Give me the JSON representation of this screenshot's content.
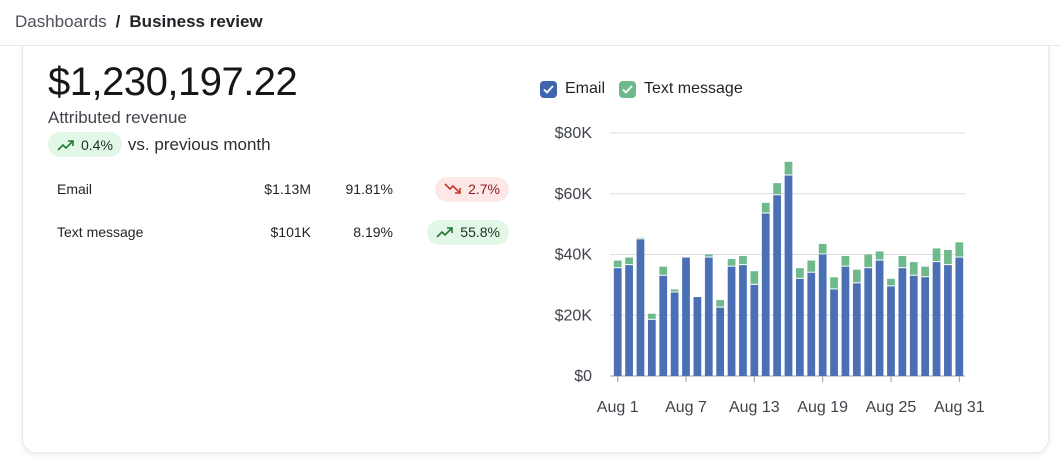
{
  "breadcrumb": {
    "parent": "Dashboards",
    "separator": "/",
    "current": "Business review"
  },
  "summary": {
    "total": "$1,230,197.22",
    "label": "Attributed revenue",
    "change": "0.4%",
    "change_direction": "up",
    "comparison": "vs. previous month"
  },
  "channels": [
    {
      "name": "Email",
      "revenue": "$1.13M",
      "share": "91.81%",
      "change": "2.7%",
      "direction": "down"
    },
    {
      "name": "Text message",
      "revenue": "$101K",
      "share": "8.19%",
      "change": "55.8%",
      "direction": "up"
    }
  ],
  "colors": {
    "email": "#4a6fb5",
    "text": "#6fba8c",
    "up_bg": "#e3f7e7",
    "down_bg": "#fde7e7",
    "up_icon": "#1f7a3a",
    "down_icon": "#c0392b"
  },
  "icons": {
    "up": "trending-up-icon",
    "down": "trending-down-icon",
    "check": "check-icon"
  },
  "chart_data": {
    "type": "bar",
    "stacked": true,
    "legend": [
      {
        "name": "Email",
        "checked": true
      },
      {
        "name": "Text message",
        "checked": true
      }
    ],
    "legend_position": "top-left",
    "grid": true,
    "ylim": [
      0,
      80000
    ],
    "yticks": [
      "$0",
      "$20K",
      "$40K",
      "$60K",
      "$80K"
    ],
    "ytick_values": [
      0,
      20000,
      40000,
      60000,
      80000
    ],
    "xticks": [
      "Aug 1",
      "Aug 7",
      "Aug 13",
      "Aug 19",
      "Aug 25",
      "Aug 31"
    ],
    "xtick_days": [
      1,
      7,
      13,
      19,
      25,
      31
    ],
    "categories": [
      "Aug 1",
      "Aug 2",
      "Aug 3",
      "Aug 4",
      "Aug 5",
      "Aug 6",
      "Aug 7",
      "Aug 8",
      "Aug 9",
      "Aug 10",
      "Aug 11",
      "Aug 12",
      "Aug 13",
      "Aug 14",
      "Aug 15",
      "Aug 16",
      "Aug 17",
      "Aug 18",
      "Aug 19",
      "Aug 20",
      "Aug 21",
      "Aug 22",
      "Aug 23",
      "Aug 24",
      "Aug 25",
      "Aug 26",
      "Aug 27",
      "Aug 28",
      "Aug 29",
      "Aug 30",
      "Aug 31"
    ],
    "series": [
      {
        "name": "Email",
        "values": [
          35500,
          36500,
          45000,
          18500,
          33000,
          27500,
          39000,
          26000,
          39000,
          22500,
          36000,
          36500,
          30000,
          53500,
          59500,
          66000,
          32000,
          34000,
          40000,
          28500,
          36000,
          30500,
          35500,
          38000,
          29500,
          35500,
          33000,
          32500,
          37500,
          36500,
          39000
        ]
      },
      {
        "name": "Text message",
        "values": [
          2500,
          2500,
          500,
          2000,
          3000,
          1000,
          0,
          0,
          1000,
          2500,
          2500,
          3000,
          4500,
          3500,
          4000,
          4500,
          3500,
          4000,
          3500,
          4000,
          3500,
          4500,
          4500,
          3000,
          2500,
          4000,
          4500,
          3500,
          4500,
          5000,
          5000
        ]
      }
    ]
  }
}
